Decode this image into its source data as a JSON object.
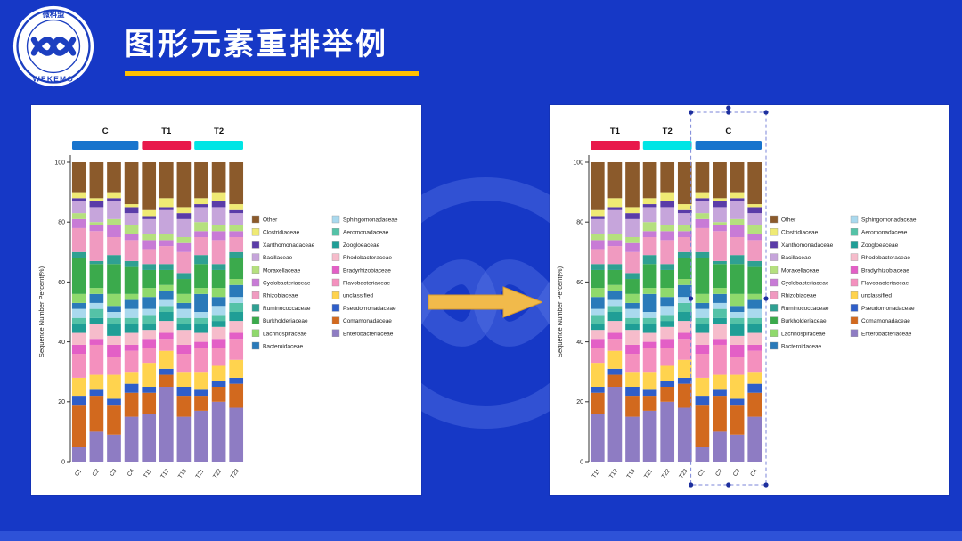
{
  "header": {
    "title": "图形元素重排举例"
  },
  "logo": {
    "top_text": "微科盟",
    "bottom_text": "WEKEMO"
  },
  "colors": {
    "slide_bg": "#1638C6",
    "bottom_strip": "#2E52D8",
    "panel_bg": "#FFFFFF",
    "title_text": "#FFFFFF",
    "title_underline": "#FFC000",
    "arrow_fill": "#F1BA4B",
    "arrow_stroke": "#D99B2B",
    "logo_blue": "#1C3FC0",
    "selection_border": "#7B86D8",
    "selection_handle": "#1D2F9E"
  },
  "chart_data": {
    "type": "bar",
    "stacked": true,
    "title": "",
    "xlabel": "",
    "ylabel": "Sequence Number Percent(%)",
    "ylim": [
      0,
      100
    ],
    "yticks": [
      0,
      20,
      40,
      60,
      80,
      100
    ],
    "legend_position": "right",
    "taxa": [
      {
        "name": "Other",
        "color": "#8B5A2B"
      },
      {
        "name": "Clostridiaceae",
        "color": "#EFEA74"
      },
      {
        "name": "Xanthomonadaceae",
        "color": "#5A3CA8"
      },
      {
        "name": "Bacillaceae",
        "color": "#C6A5DB"
      },
      {
        "name": "Moraxellaceae",
        "color": "#B5E07E"
      },
      {
        "name": "Cyclobacteriaceae",
        "color": "#C87BD6"
      },
      {
        "name": "Rhizobiaceae",
        "color": "#F09AC0"
      },
      {
        "name": "Ruminococcaceae",
        "color": "#2FA092"
      },
      {
        "name": "Burkholderiaceae",
        "color": "#3BAA4C"
      },
      {
        "name": "Lachnospiraceae",
        "color": "#8FD96C"
      },
      {
        "name": "Bacteroidaceae",
        "color": "#2A7AB9"
      },
      {
        "name": "Sphingomonadaceae",
        "color": "#A9D9EE"
      },
      {
        "name": "Aeromonadaceae",
        "color": "#54C2A7"
      },
      {
        "name": "Zoogloeaceae",
        "color": "#1F9E96"
      },
      {
        "name": "Rhodobacteraceae",
        "color": "#F6BCCB"
      },
      {
        "name": "Bradyrhizobiaceae",
        "color": "#E35FC6"
      },
      {
        "name": "Flavobacteriaceae",
        "color": "#F490BE"
      },
      {
        "name": "unclassified",
        "color": "#FFD34E"
      },
      {
        "name": "Pseudomonadaceae",
        "color": "#2E5EC9"
      },
      {
        "name": "Comamonadaceae",
        "color": "#D2691E"
      },
      {
        "name": "Enterobacteriaceae",
        "color": "#8E7CC3"
      }
    ],
    "values": {
      "C1": [
        10,
        2,
        1,
        4,
        2,
        3,
        8,
        2,
        12,
        3,
        2,
        3,
        2,
        3,
        4,
        3,
        8,
        6,
        3,
        14,
        5
      ],
      "C2": [
        12,
        1,
        2,
        5,
        1,
        2,
        10,
        1,
        8,
        2,
        3,
        2,
        3,
        2,
        5,
        2,
        10,
        5,
        2,
        12,
        10
      ],
      "C3": [
        10,
        2,
        1,
        6,
        2,
        4,
        6,
        3,
        10,
        4,
        2,
        2,
        2,
        4,
        3,
        4,
        6,
        8,
        2,
        10,
        9
      ],
      "C4": [
        14,
        1,
        2,
        4,
        3,
        2,
        7,
        2,
        9,
        2,
        3,
        3,
        2,
        3,
        4,
        2,
        7,
        4,
        3,
        8,
        15
      ],
      "T11": [
        16,
        2,
        1,
        5,
        2,
        3,
        5,
        2,
        6,
        3,
        4,
        2,
        3,
        2,
        3,
        3,
        5,
        8,
        2,
        7,
        16
      ],
      "T12": [
        12,
        3,
        1,
        8,
        2,
        2,
        6,
        2,
        5,
        2,
        3,
        2,
        2,
        3,
        4,
        2,
        4,
        6,
        2,
        4,
        25
      ],
      "T13": [
        15,
        2,
        2,
        6,
        2,
        3,
        7,
        2,
        5,
        3,
        2,
        3,
        2,
        2,
        5,
        3,
        6,
        5,
        3,
        7,
        15
      ],
      "T21": [
        12,
        2,
        1,
        5,
        3,
        2,
        6,
        3,
        8,
        2,
        6,
        2,
        2,
        3,
        3,
        2,
        8,
        6,
        2,
        5,
        17
      ],
      "T22": [
        10,
        3,
        2,
        6,
        2,
        3,
        8,
        2,
        6,
        3,
        3,
        3,
        2,
        2,
        4,
        3,
        6,
        5,
        2,
        5,
        20
      ],
      "T23": [
        14,
        2,
        1,
        4,
        2,
        2,
        5,
        2,
        7,
        2,
        4,
        2,
        3,
        3,
        4,
        2,
        7,
        6,
        2,
        8,
        18
      ]
    },
    "charts": [
      {
        "id": "before",
        "categories": [
          "C1",
          "C2",
          "C3",
          "C4",
          "T11",
          "T12",
          "T13",
          "T21",
          "T22",
          "T23"
        ],
        "groups": [
          {
            "label": "C",
            "color": "#1874CD",
            "samples": [
              "C1",
              "C2",
              "C3",
              "C4"
            ]
          },
          {
            "label": "T1",
            "color": "#E8194B",
            "samples": [
              "T11",
              "T12",
              "T13"
            ]
          },
          {
            "label": "T2",
            "color": "#00E5E5",
            "samples": [
              "T21",
              "T22",
              "T23"
            ]
          }
        ]
      },
      {
        "id": "after",
        "categories": [
          "T11",
          "T12",
          "T13",
          "T21",
          "T22",
          "T23",
          "C1",
          "C2",
          "C3",
          "C4"
        ],
        "groups": [
          {
            "label": "T1",
            "color": "#E8194B",
            "samples": [
              "T11",
              "T12",
              "T13"
            ]
          },
          {
            "label": "T2",
            "color": "#00E5E5",
            "samples": [
              "T21",
              "T22",
              "T23"
            ]
          },
          {
            "label": "C",
            "color": "#1874CD",
            "samples": [
              "C1",
              "C2",
              "C3",
              "C4"
            ],
            "selected": true
          }
        ]
      }
    ]
  }
}
